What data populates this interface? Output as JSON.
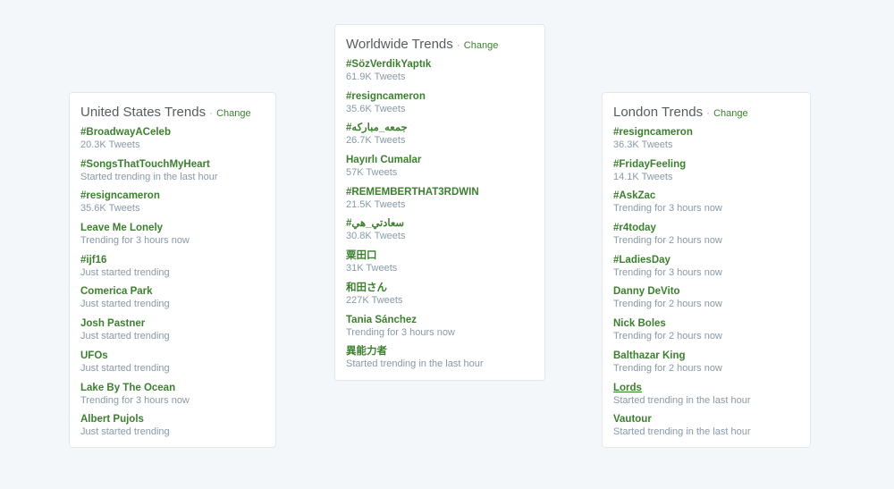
{
  "colors": {
    "accent": "#3c7f2f",
    "background": "#f4f7fa"
  },
  "cards": [
    {
      "title": "United States Trends",
      "change": "Change",
      "items": [
        {
          "name": "#BroadwayACeleb",
          "meta": "20.3K Tweets"
        },
        {
          "name": "#SongsThatTouchMyHeart",
          "meta": "Started trending in the last hour"
        },
        {
          "name": "#resigncameron",
          "meta": "35.6K Tweets"
        },
        {
          "name": "Leave Me Lonely",
          "meta": "Trending for 3 hours now"
        },
        {
          "name": "#ijf16",
          "meta": "Just started trending"
        },
        {
          "name": "Comerica Park",
          "meta": "Just started trending"
        },
        {
          "name": "Josh Pastner",
          "meta": "Just started trending"
        },
        {
          "name": "UFOs",
          "meta": "Just started trending"
        },
        {
          "name": "Lake By The Ocean",
          "meta": "Trending for 3 hours now"
        },
        {
          "name": "Albert Pujols",
          "meta": "Just started trending"
        }
      ]
    },
    {
      "title": "Worldwide Trends",
      "change": "Change",
      "items": [
        {
          "name": "#SözVerdikYaptık",
          "meta": "61.9K Tweets"
        },
        {
          "name": "#resigncameron",
          "meta": "35.6K Tweets"
        },
        {
          "name": "#جمعه_مباركه",
          "meta": "26.7K Tweets"
        },
        {
          "name": "Hayırlı Cumalar",
          "meta": "57K Tweets"
        },
        {
          "name": "#REMEMBERTHAT3RDWIN",
          "meta": "21.5K Tweets"
        },
        {
          "name": "#سعادتي_هي",
          "meta": "30.8K Tweets"
        },
        {
          "name": "粟田口",
          "meta": "31K Tweets"
        },
        {
          "name": "和田さん",
          "meta": "227K Tweets"
        },
        {
          "name": "Tania Sánchez",
          "meta": "Trending for 3 hours now"
        },
        {
          "name": "異能力者",
          "meta": "Started trending in the last hour"
        }
      ]
    },
    {
      "title": "London Trends",
      "change": "Change",
      "items": [
        {
          "name": "#resigncameron",
          "meta": "36.3K Tweets"
        },
        {
          "name": "#FridayFeeling",
          "meta": "14.1K Tweets"
        },
        {
          "name": "#AskZac",
          "meta": "Trending for 3 hours now"
        },
        {
          "name": "#r4today",
          "meta": "Trending for 2 hours now"
        },
        {
          "name": "#LadiesDay",
          "meta": "Trending for 3 hours now"
        },
        {
          "name": "Danny DeVito",
          "meta": "Trending for 2 hours now"
        },
        {
          "name": "Nick Boles",
          "meta": "Trending for 2 hours now"
        },
        {
          "name": "Balthazar King",
          "meta": "Trending for 2 hours now"
        },
        {
          "name": "Lords",
          "meta": "Started trending in the last hour",
          "hovered": true
        },
        {
          "name": "Vautour",
          "meta": "Started trending in the last hour"
        }
      ]
    }
  ]
}
